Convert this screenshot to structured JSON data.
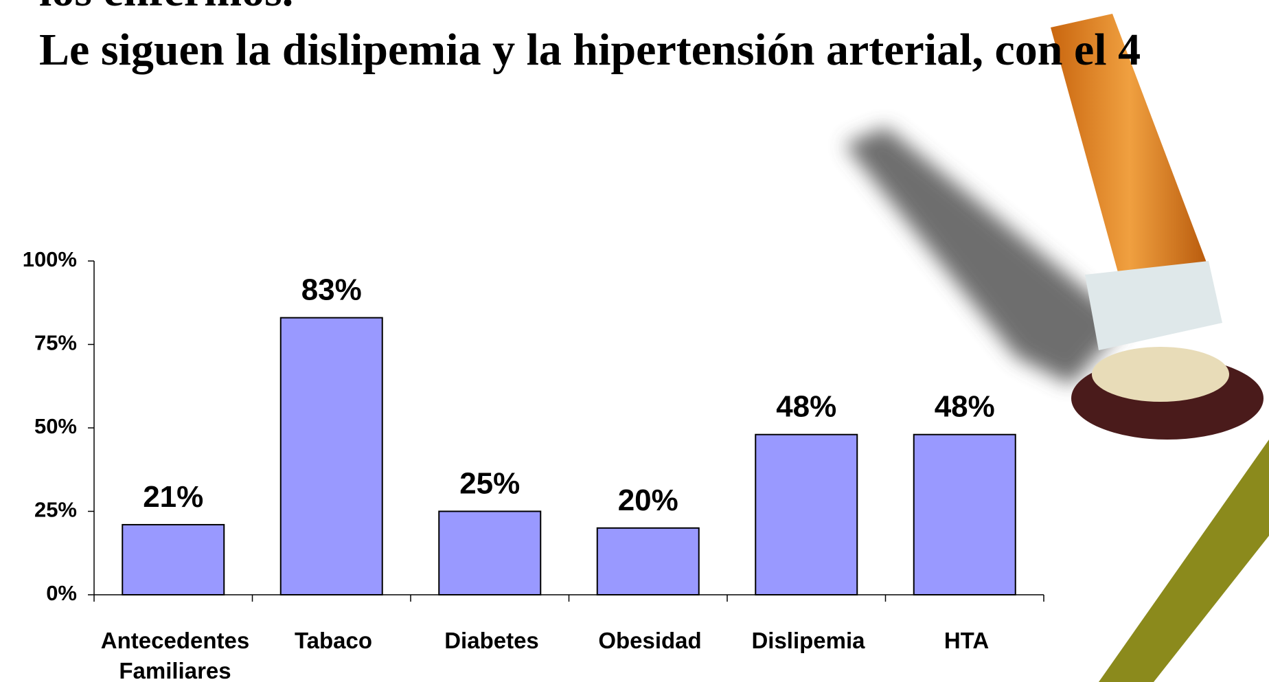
{
  "chart_data": {
    "type": "bar",
    "texts": [
      "los enfermos.",
      "Le siguen la dislipemia y la hipertensión arterial, con el 4"
    ],
    "categories": [
      "Antecedentes Familiares",
      "Tabaco",
      "Diabetes",
      "Obesidad",
      "Dislipemia",
      "HTA"
    ],
    "values": [
      21,
      83,
      25,
      20,
      48,
      48
    ],
    "value_labels": [
      "21%",
      "83%",
      "25%",
      "20%",
      "48%",
      "48%"
    ],
    "color": "#9999ff",
    "ylim": [
      0,
      100
    ],
    "yticks": [
      {
        "value": 0,
        "label": "0%"
      },
      {
        "value": 25,
        "label": "25%"
      },
      {
        "value": 50,
        "label": "50%"
      },
      {
        "value": 75,
        "label": "75%"
      },
      {
        "value": 100,
        "label": "100%"
      }
    ]
  }
}
